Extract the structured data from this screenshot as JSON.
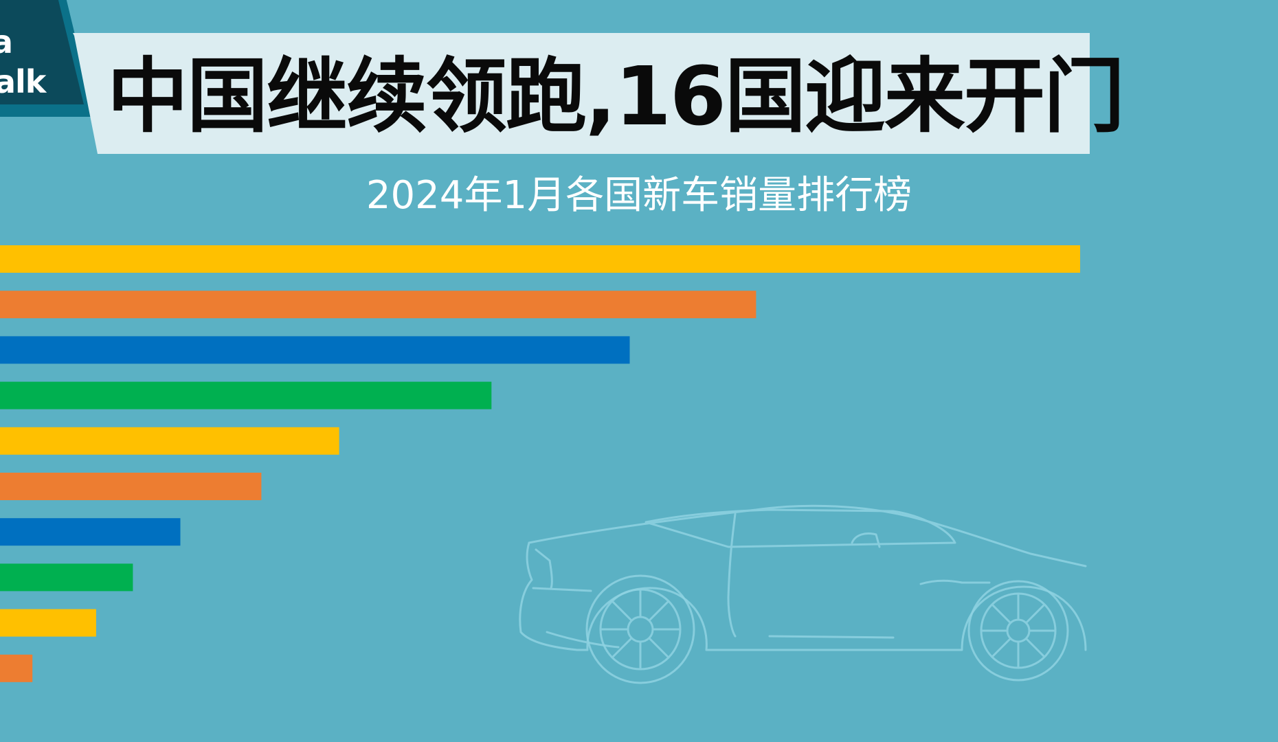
{
  "logo": {
    "line1": "a",
    "line2": "alk",
    "colors": {
      "dark": "#0c4a5b",
      "light": "#1f8aa3"
    }
  },
  "header": {
    "title": "中国继续领跑,16国迎来开门",
    "subtitle": "2024年1月各国新车销量排行榜"
  },
  "decoration": {
    "icon": "car-outline-icon"
  },
  "chart_data": {
    "type": "bar",
    "orientation": "horizontal",
    "title": "中国继续领跑,16国迎来开门",
    "subtitle": "2024年1月各国新车销量排行榜",
    "xlabel": "",
    "ylabel": "",
    "grid": false,
    "categories": [
      "",
      "",
      "",
      "",
      "",
      "",
      "",
      "",
      "",
      ""
    ],
    "values": [
      100,
      70,
      58.3,
      45.5,
      31.4,
      24.2,
      16.7,
      12.3,
      8.9,
      3.0
    ],
    "xlim": [
      0,
      100
    ],
    "colors": [
      "#ffc000",
      "#ed7d31",
      "#0070c0",
      "#00b050",
      "#ffc000",
      "#ed7d31",
      "#0070c0",
      "#00b050",
      "#ffc000",
      "#ed7d31"
    ]
  }
}
